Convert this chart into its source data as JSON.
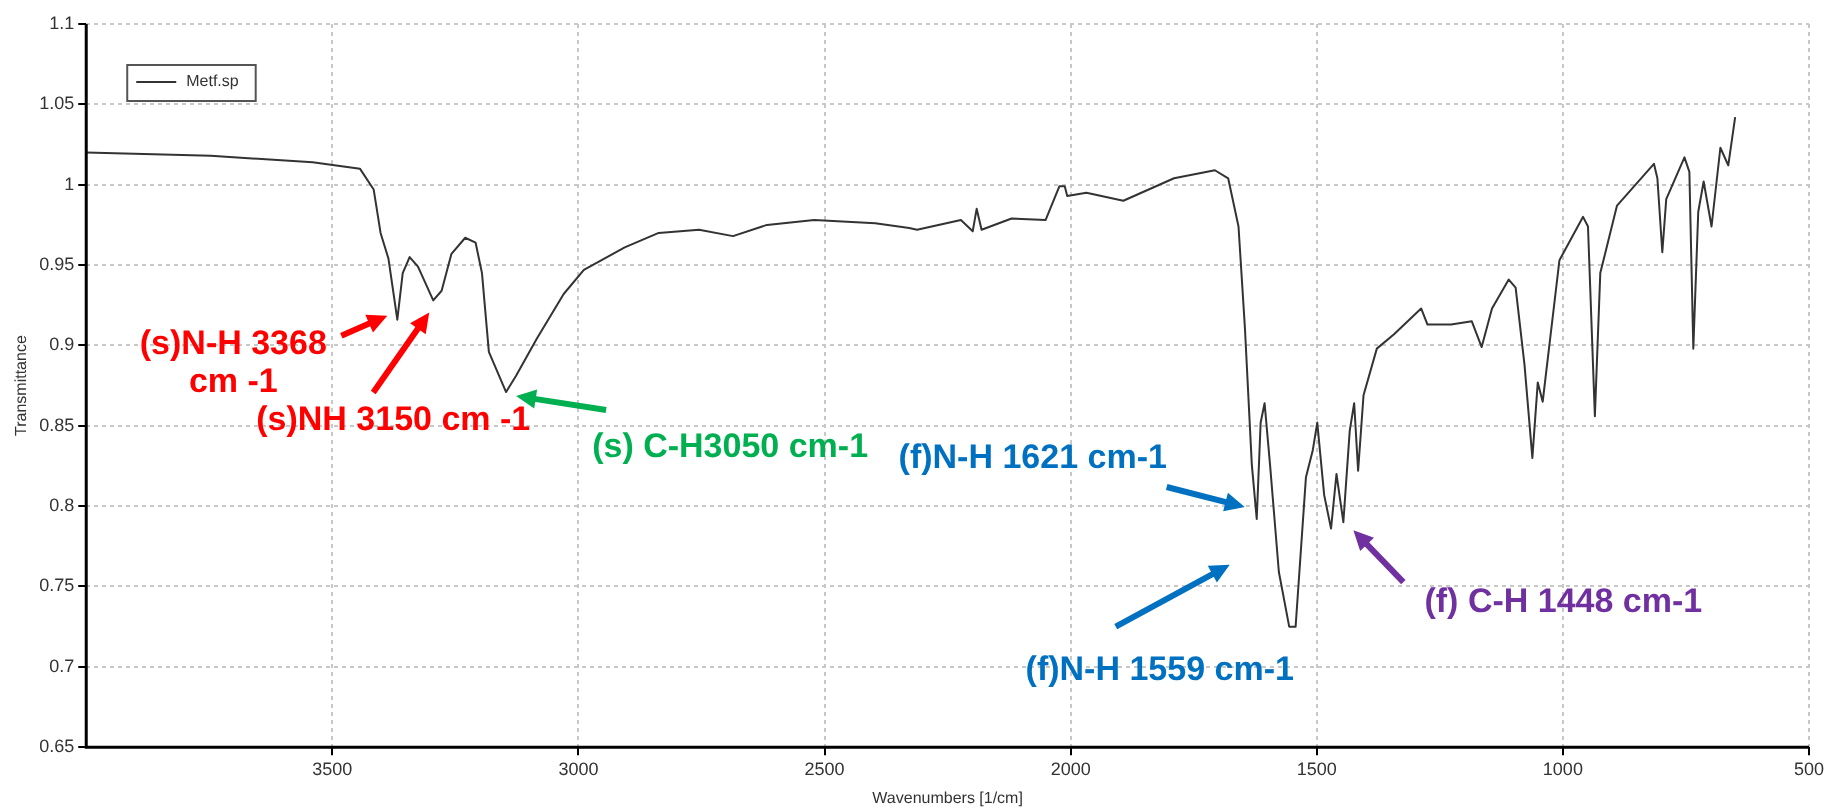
{
  "chart_data": {
    "type": "line",
    "xlabel": "Wavenumbers [1/cm]",
    "ylabel": "Transmittance",
    "xlim": [
      4000,
      500
    ],
    "xticks": [
      3500,
      3000,
      2500,
      2000,
      1500,
      1000,
      500
    ],
    "ylim": [
      0.65,
      1.1
    ],
    "yticks": [
      0.65,
      0.7,
      0.75,
      0.8,
      0.85,
      0.9,
      0.95,
      1,
      1.05,
      1.1
    ],
    "grid": true,
    "legend": "top left",
    "marker": "none",
    "line_style": "solid",
    "series": [
      {
        "name": "Metf.sp",
        "color": "#333333",
        "x": [
          4000,
          3747,
          3540,
          3444,
          3416,
          3402,
          3386,
          3368,
          3357,
          3343,
          3326,
          3295,
          3278,
          3258,
          3230,
          3209,
          3196,
          3182,
          3147,
          3127,
          3085,
          3030,
          2989,
          2906,
          2837,
          2755,
          2686,
          2617,
          2521,
          2397,
          2328,
          2312,
          2223,
          2199,
          2191,
          2181,
          2120,
          2051,
          2023,
          2012,
          2007,
          1968,
          1893,
          1790,
          1707,
          1680,
          1659,
          1646,
          1632,
          1622,
          1614,
          1606,
          1595,
          1577,
          1556,
          1543,
          1522,
          1508,
          1499,
          1485,
          1471,
          1460,
          1446,
          1433,
          1424,
          1416,
          1405,
          1378,
          1343,
          1288,
          1275,
          1227,
          1185,
          1165,
          1144,
          1110,
          1096,
          1078,
          1062,
          1051,
          1041,
          1007,
          959,
          949,
          935,
          924,
          890,
          815,
          808,
          798,
          790,
          753,
          743,
          735,
          725,
          714,
          698,
          680,
          664,
          650
        ],
        "values": [
          1.02,
          1.018,
          1.014,
          1.01,
          0.997,
          0.97,
          0.954,
          0.916,
          0.945,
          0.955,
          0.949,
          0.928,
          0.934,
          0.957,
          0.967,
          0.964,
          0.945,
          0.896,
          0.871,
          0.881,
          0.904,
          0.932,
          0.947,
          0.961,
          0.97,
          0.972,
          0.968,
          0.975,
          0.978,
          0.976,
          0.973,
          0.972,
          0.978,
          0.971,
          0.985,
          0.972,
          0.979,
          0.978,
          0.999,
          0.999,
          0.993,
          0.995,
          0.99,
          1.004,
          1.009,
          1.004,
          0.974,
          0.911,
          0.826,
          0.792,
          0.852,
          0.864,
          0.826,
          0.759,
          0.725,
          0.725,
          0.818,
          0.835,
          0.852,
          0.807,
          0.786,
          0.82,
          0.79,
          0.847,
          0.864,
          0.822,
          0.869,
          0.898,
          0.907,
          0.923,
          0.913,
          0.913,
          0.915,
          0.899,
          0.923,
          0.941,
          0.936,
          0.888,
          0.83,
          0.877,
          0.865,
          0.953,
          0.98,
          0.974,
          0.856,
          0.945,
          0.987,
          1.013,
          1.004,
          0.958,
          0.991,
          1.017,
          1.008,
          0.898,
          0.983,
          1.002,
          0.974,
          1.023,
          1.012,
          1.042
        ]
      }
    ],
    "annotations": [
      {
        "text": "(s)N-H 3368 cm -1",
        "x": 3368,
        "y": 0.916
      },
      {
        "text": "(s)NH 3150 cm -1",
        "x": 3295,
        "y": 0.928
      },
      {
        "text": "(s) C-H3050 cm-1",
        "x": 3147,
        "y": 0.871
      },
      {
        "text": "(f)N-H 1621 cm-1",
        "x": 1622,
        "y": 0.792
      },
      {
        "text": "(f)N-H 1559 cm-1",
        "x": 1559,
        "y": 0.725
      },
      {
        "text": "(f) C-H 1448 cm-1",
        "x": 1446,
        "y": 0.79
      }
    ]
  }
}
